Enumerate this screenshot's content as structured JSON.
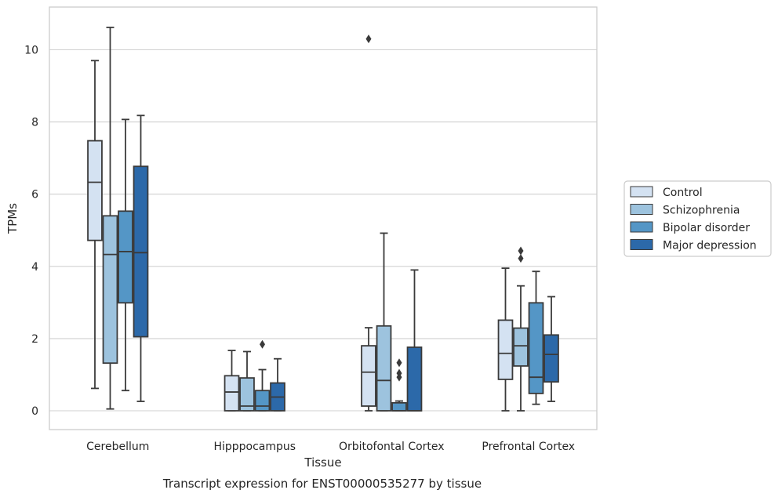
{
  "chart_data": {
    "type": "boxplot",
    "title": "Transcript expression for ENST00000535277 by tissue",
    "xlabel": "Tissue",
    "ylabel": "TPMs",
    "ylim": [
      -0.5,
      11.2
    ],
    "yticks": [
      0,
      2,
      4,
      6,
      8,
      10
    ],
    "grid": true,
    "legend_position": "right",
    "categories": [
      "Cerebellum",
      "Hipppocampus",
      "Orbitofontal Cortex",
      "Prefrontal Cortex"
    ],
    "series": [
      {
        "name": "Control",
        "color": "#d4e2f2",
        "boxes": [
          {
            "whislo": 0.62,
            "q1": 4.72,
            "med": 6.33,
            "q3": 7.48,
            "whishi": 9.7,
            "fliers": []
          },
          {
            "whislo": 0.0,
            "q1": 0.0,
            "med": 0.52,
            "q3": 0.97,
            "whishi": 1.67,
            "fliers": []
          },
          {
            "whislo": 0.0,
            "q1": 0.13,
            "med": 1.07,
            "q3": 1.8,
            "whishi": 2.3,
            "fliers": [
              10.3
            ]
          },
          {
            "whislo": 0.0,
            "q1": 0.87,
            "med": 1.59,
            "q3": 2.51,
            "whishi": 3.95,
            "fliers": []
          }
        ]
      },
      {
        "name": "Schizophrenia",
        "color": "#9dc3de",
        "boxes": [
          {
            "whislo": 0.05,
            "q1": 1.32,
            "med": 4.33,
            "q3": 5.4,
            "whishi": 10.62,
            "fliers": []
          },
          {
            "whislo": 0.0,
            "q1": 0.0,
            "med": 0.13,
            "q3": 0.91,
            "whishi": 1.64,
            "fliers": []
          },
          {
            "whislo": 0.0,
            "q1": 0.0,
            "med": 0.84,
            "q3": 2.35,
            "whishi": 4.92,
            "fliers": []
          },
          {
            "whislo": 0.0,
            "q1": 1.24,
            "med": 1.8,
            "q3": 2.29,
            "whishi": 3.46,
            "fliers": [
              4.22,
              4.43
            ]
          }
        ]
      },
      {
        "name": "Bipolar disorder",
        "color": "#5496c6",
        "boxes": [
          {
            "whislo": 0.56,
            "q1": 2.99,
            "med": 4.41,
            "q3": 5.53,
            "whishi": 8.07,
            "fliers": []
          },
          {
            "whislo": 0.0,
            "q1": 0.0,
            "med": 0.13,
            "q3": 0.56,
            "whishi": 1.14,
            "fliers": [
              1.84
            ]
          },
          {
            "whislo": 0.0,
            "q1": 0.0,
            "med": 0.0,
            "q3": 0.22,
            "whishi": 0.27,
            "fliers": [
              0.93,
              1.04,
              1.33
            ]
          },
          {
            "whislo": 0.18,
            "q1": 0.48,
            "med": 0.93,
            "q3": 2.99,
            "whishi": 3.86,
            "fliers": []
          }
        ]
      },
      {
        "name": "Major depression",
        "color": "#2c69a9",
        "boxes": [
          {
            "whislo": 0.26,
            "q1": 2.05,
            "med": 4.38,
            "q3": 6.77,
            "whishi": 8.18,
            "fliers": []
          },
          {
            "whislo": 0.0,
            "q1": 0.0,
            "med": 0.38,
            "q3": 0.77,
            "whishi": 1.44,
            "fliers": []
          },
          {
            "whislo": 0.0,
            "q1": 0.0,
            "med": 0.0,
            "q3": 1.76,
            "whishi": 3.9,
            "fliers": []
          },
          {
            "whislo": 0.26,
            "q1": 0.8,
            "med": 1.56,
            "q3": 2.1,
            "whishi": 3.16,
            "fliers": []
          }
        ]
      }
    ]
  }
}
